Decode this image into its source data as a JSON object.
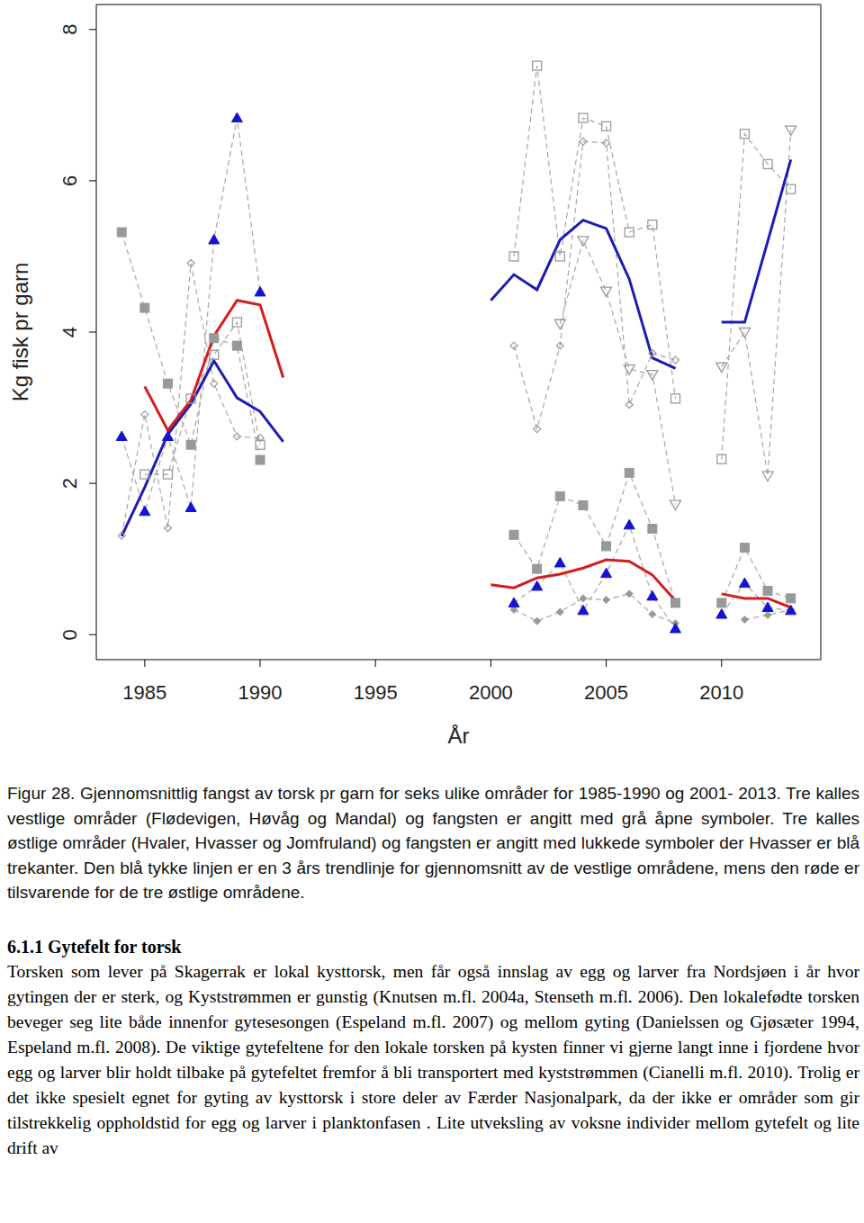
{
  "chart_data": {
    "type": "line",
    "x_label": "År",
    "y_label": "Kg fisk pr garn",
    "grid": false,
    "x": [
      1984,
      1985,
      1986,
      1987,
      1988,
      1989,
      1990,
      1991,
      1992,
      1993,
      1994,
      1995,
      1996,
      1997,
      1998,
      1999,
      2000,
      2001,
      2002,
      2003,
      2004,
      2005,
      2006,
      2007,
      2008,
      2009,
      2010,
      2011,
      2012,
      2013
    ],
    "xlim": [
      1982.9,
      2014.3
    ],
    "xticks": [
      1985,
      1990,
      1995,
      2000,
      2005,
      2010
    ],
    "ylim": [
      -0.33,
      8.33
    ],
    "yticks": [
      0,
      2,
      4,
      6,
      8
    ],
    "series": [
      {
        "color": "#999999",
        "marker": "square_open",
        "line_style": "dashed",
        "values": [
          null,
          2.12,
          2.12,
          3.12,
          3.7,
          4.13,
          2.51,
          null,
          null,
          null,
          null,
          null,
          null,
          null,
          null,
          null,
          null,
          5.0,
          7.52,
          5.0,
          6.83,
          6.72,
          5.32,
          5.42,
          3.12,
          null,
          2.32,
          6.62,
          6.22,
          5.89
        ]
      },
      {
        "color": "#999999",
        "marker": "diamond_open",
        "line_style": "dashed",
        "values": [
          1.31,
          2.91,
          1.41,
          4.91,
          3.32,
          2.62,
          2.6,
          null,
          null,
          null,
          null,
          null,
          null,
          null,
          null,
          null,
          null,
          3.82,
          2.72,
          3.82,
          6.52,
          6.5,
          3.04,
          3.72,
          3.63,
          null,
          null,
          null,
          null,
          null
        ]
      },
      {
        "color": "#999999",
        "marker": "triangle_down_open",
        "line_style": "dashed",
        "values": [
          null,
          null,
          null,
          null,
          null,
          null,
          null,
          null,
          null,
          null,
          null,
          null,
          null,
          null,
          null,
          null,
          null,
          null,
          null,
          4.11,
          5.21,
          4.54,
          3.51,
          3.44,
          1.72,
          null,
          3.54,
          4.0,
          2.1,
          6.67
        ]
      },
      {
        "color": "#999999",
        "marker": "square",
        "line_style": "dashed",
        "values": [
          5.32,
          4.32,
          3.32,
          2.51,
          3.92,
          3.82,
          2.31,
          null,
          null,
          null,
          null,
          null,
          null,
          null,
          null,
          null,
          null,
          1.32,
          0.87,
          1.83,
          1.71,
          1.17,
          2.14,
          1.4,
          0.42,
          null,
          0.42,
          1.15,
          0.58,
          0.48
        ]
      },
      {
        "color": "#999999",
        "marker": "diamond",
        "line_style": "dashed",
        "values": [
          null,
          null,
          null,
          null,
          null,
          null,
          null,
          null,
          null,
          null,
          null,
          null,
          null,
          null,
          null,
          null,
          null,
          0.33,
          0.18,
          0.3,
          0.48,
          0.46,
          0.54,
          0.27,
          0.15,
          null,
          null,
          0.2,
          0.26,
          0.33
        ]
      },
      {
        "color": "#1414d2",
        "marker": "triangle",
        "line_style": "dashed",
        "values": [
          2.62,
          1.63,
          2.62,
          1.68,
          5.22,
          6.83,
          4.53,
          null,
          null,
          null,
          null,
          null,
          null,
          null,
          null,
          null,
          null,
          0.42,
          0.64,
          0.95,
          0.32,
          0.81,
          1.45,
          0.51,
          0.08,
          null,
          0.27,
          0.68,
          0.36,
          0.32
        ]
      },
      {
        "color": "#1c1cb4",
        "marker": "none",
        "line_style": "solid",
        "values": [
          1.3,
          1.95,
          2.65,
          3.05,
          3.62,
          3.13,
          2.95,
          2.55,
          null,
          null,
          null,
          null,
          null,
          null,
          null,
          null,
          4.42,
          4.76,
          4.56,
          5.22,
          5.48,
          5.37,
          4.7,
          3.66,
          3.52,
          null,
          4.13,
          4.13,
          5.2,
          6.28
        ]
      },
      {
        "color": "#d21e1e",
        "marker": "none",
        "line_style": "solid",
        "values": [
          null,
          3.28,
          2.7,
          3.1,
          3.95,
          4.42,
          4.36,
          3.4,
          null,
          null,
          null,
          null,
          null,
          null,
          null,
          null,
          0.66,
          0.62,
          0.75,
          0.8,
          0.88,
          0.99,
          0.97,
          0.79,
          0.45,
          null,
          0.54,
          0.48,
          0.48,
          0.36
        ]
      }
    ]
  },
  "document": {
    "caption": "Figur 28. Gjennomsnittlig fangst av torsk pr garn for seks ulike områder for 1985-1990 og 2001- 2013. Tre kalles vestlige områder (Flødevigen, Høvåg og Mandal) og fangsten er angitt med grå åpne symboler. Tre kalles østlige områder (Hvaler, Hvasser og Jomfruland) og fangsten er angitt med lukkede symboler der Hvasser er blå trekanter. Den blå tykke linjen er en 3 års trendlinje for gjennomsnitt av de vestlige områdene, mens den røde er tilsvarende for de tre østlige områdene.",
    "heading": "6.1.1 Gytefelt for torsk",
    "paragraph": "Torsken som lever på Skagerrak er lokal kysttorsk, men får også innslag av egg og larver fra Nordsjøen i år hvor gytingen der er sterk, og Kyststrømmen er gunstig (Knutsen m.fl. 2004a, Stenseth m.fl. 2006). Den lokalefødte torsken beveger seg lite både innenfor gytesesongen (Espeland m.fl. 2007) og mellom gyting (Danielssen og Gjøsæter 1994, Espeland m.fl. 2008). De viktige gytefeltene for den lokale torsken på kysten finner vi gjerne langt inne i fjordene hvor egg og larver blir holdt tilbake på gytefeltet fremfor å bli transportert med kyststrømmen (Cianelli m.fl. 2010). Trolig er det ikke spesielt egnet for gyting av kysttorsk i store deler av Færder Nasjonalpark, da der ikke er områder som gir tilstrekkelig oppholdstid for egg og larver i planktonfasen . Lite utveksling av voksne individer mellom gytefelt og lite drift av"
  }
}
